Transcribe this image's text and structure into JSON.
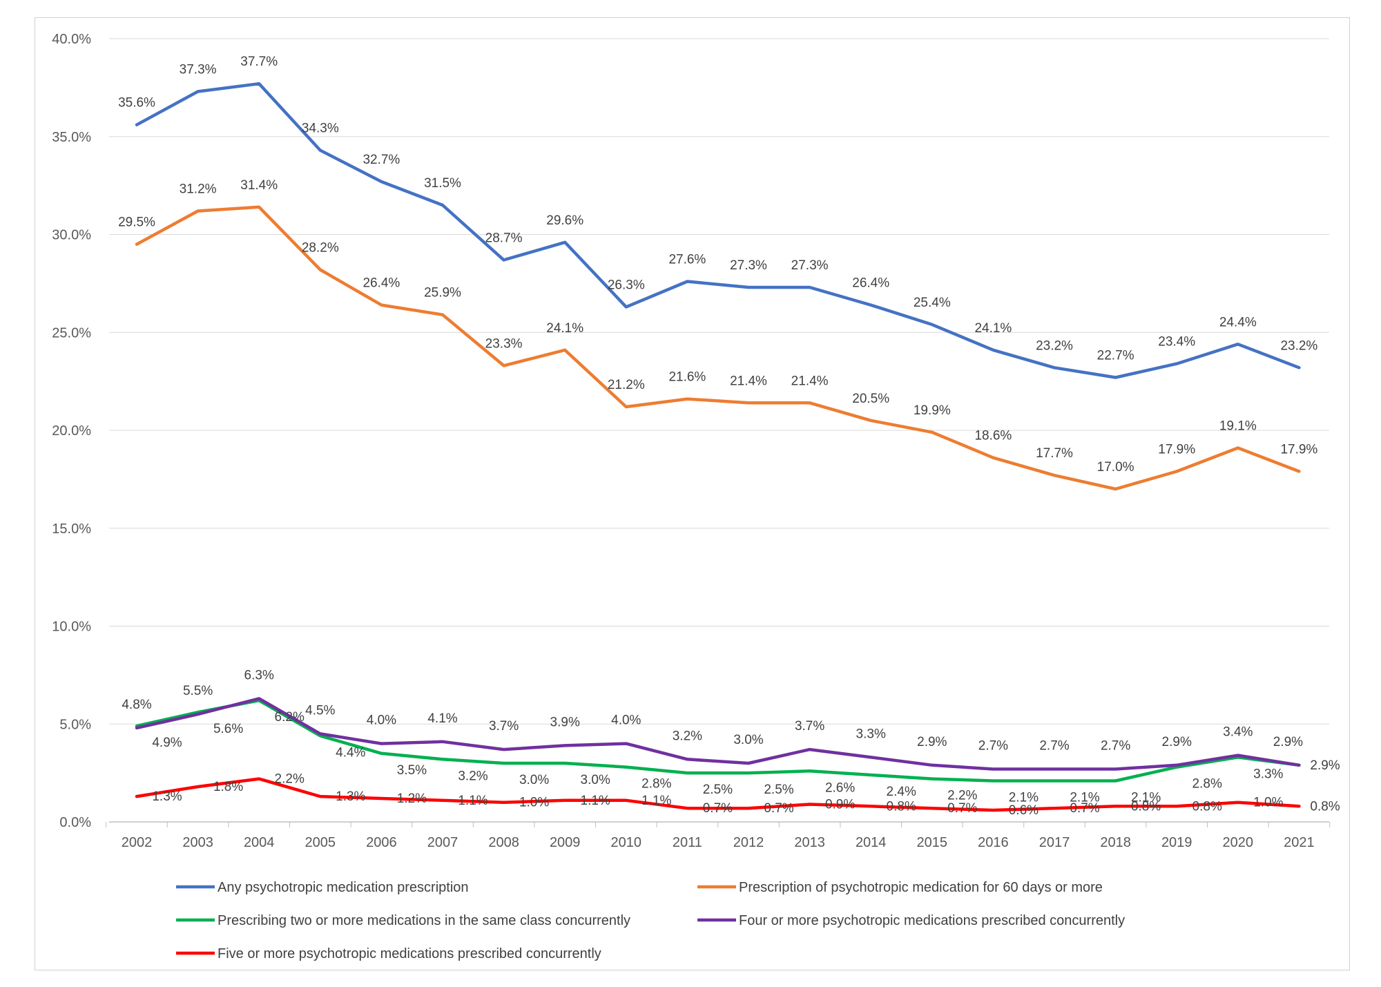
{
  "chart_data": {
    "type": "line",
    "title": "",
    "xlabel": "",
    "ylabel": "",
    "ylim": [
      0,
      40
    ],
    "yticks": [
      "0.0%",
      "5.0%",
      "10.0%",
      "15.0%",
      "20.0%",
      "25.0%",
      "30.0%",
      "35.0%",
      "40.0%"
    ],
    "grid": true,
    "legend_position": "bottom",
    "x": [
      "2002",
      "2003",
      "2004",
      "2005",
      "2006",
      "2007",
      "2008",
      "2009",
      "2010",
      "2011",
      "2012",
      "2013",
      "2014",
      "2015",
      "2016",
      "2017",
      "2018",
      "2019",
      "2020",
      "2021"
    ],
    "series": [
      {
        "name": "Any psychotropic medication prescription",
        "color": "#4472C4",
        "values": [
          35.6,
          37.3,
          37.7,
          34.3,
          32.7,
          31.5,
          28.7,
          29.6,
          26.3,
          27.6,
          27.3,
          27.3,
          26.4,
          25.4,
          24.1,
          23.2,
          22.7,
          23.4,
          24.4,
          23.2
        ],
        "labels": [
          "35.6%",
          "37.3%",
          "37.7%",
          "34.3%",
          "32.7%",
          "31.5%",
          "28.7%",
          "29.6%",
          "26.3%",
          "27.6%",
          "27.3%",
          "27.3%",
          "26.4%",
          "25.4%",
          "24.1%",
          "23.2%",
          "22.7%",
          "23.4%",
          "24.4%",
          "23.2%"
        ]
      },
      {
        "name": "Prescription of psychotropic medication for 60 days or more",
        "color": "#ED7D31",
        "values": [
          29.5,
          31.2,
          31.4,
          28.2,
          26.4,
          25.9,
          23.3,
          24.1,
          21.2,
          21.6,
          21.4,
          21.4,
          20.5,
          19.9,
          18.6,
          17.7,
          17.0,
          17.9,
          19.1,
          17.9
        ],
        "labels": [
          "29.5%",
          "31.2%",
          "31.4%",
          "28.2%",
          "26.4%",
          "25.9%",
          "23.3%",
          "24.1%",
          "21.2%",
          "21.6%",
          "21.4%",
          "21.4%",
          "20.5%",
          "19.9%",
          "18.6%",
          "17.7%",
          "17.0%",
          "17.9%",
          "19.1%",
          "17.9%"
        ]
      },
      {
        "name": "Prescribing two or more medications in the same class concurrently",
        "color": "#00B050",
        "values": [
          4.9,
          5.6,
          6.2,
          4.4,
          3.5,
          3.2,
          3.0,
          3.0,
          2.8,
          2.5,
          2.5,
          2.6,
          2.4,
          2.2,
          2.1,
          2.1,
          2.1,
          2.8,
          3.3,
          2.9
        ],
        "labels": [
          "4.9%",
          "5.6%",
          "6.2%",
          "4.4%",
          "3.5%",
          "3.2%",
          "3.0%",
          "3.0%",
          "2.8%",
          "2.5%",
          "2.5%",
          "2.6%",
          "2.4%",
          "2.2%",
          "2.1%",
          "2.1%",
          "2.1%",
          "2.8%",
          "3.3%",
          "2.9%"
        ]
      },
      {
        "name": "Four or more psychotropic medications prescribed concurrently",
        "color": "#7030A0",
        "values": [
          4.8,
          5.5,
          6.3,
          4.5,
          4.0,
          4.1,
          3.7,
          3.9,
          4.0,
          3.2,
          3.0,
          3.7,
          3.3,
          2.9,
          2.7,
          2.7,
          2.7,
          2.9,
          3.4,
          2.9
        ],
        "labels": [
          "4.8%",
          "5.5%",
          "6.3%",
          "4.5%",
          "4.0%",
          "4.1%",
          "3.7%",
          "3.9%",
          "4.0%",
          "3.2%",
          "3.0%",
          "3.7%",
          "3.3%",
          "2.9%",
          "2.7%",
          "2.7%",
          "2.7%",
          "2.9%",
          "3.4%",
          "2.9%"
        ]
      },
      {
        "name": "Five or more psychotropic medications prescribed concurrently",
        "color": "#FF0000",
        "values": [
          1.3,
          1.8,
          2.2,
          1.3,
          1.2,
          1.1,
          1.0,
          1.1,
          1.1,
          0.7,
          0.7,
          0.9,
          0.8,
          0.7,
          0.6,
          0.7,
          0.8,
          0.8,
          1.0,
          0.8
        ],
        "labels": [
          "1.3%",
          "1.8%",
          "2.2%",
          "1.3%",
          "1.2%",
          "1.1%",
          "1.0%",
          "1.1%",
          "1.1%",
          "0.7%",
          "0.7%",
          "0.9%",
          "0.8%",
          "0.7%",
          "0.6%",
          "0.7%",
          "0.8%",
          "0.8%",
          "1.0%",
          "0.8%"
        ]
      }
    ]
  }
}
